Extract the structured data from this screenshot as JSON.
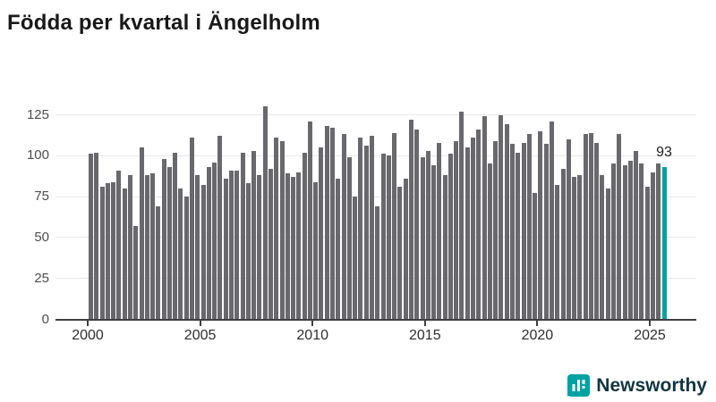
{
  "title": "Födda per kvartal i Ängelholm",
  "chart_data": {
    "type": "bar",
    "x_start": "2000-Q1",
    "frequency": "quarterly",
    "x_end": "2025-Q3",
    "values": [
      101,
      102,
      81,
      83,
      84,
      91,
      80,
      88,
      57,
      105,
      88,
      89,
      69,
      98,
      93,
      102,
      80,
      75,
      111,
      88,
      82,
      93,
      96,
      112,
      86,
      91,
      91,
      102,
      83,
      103,
      88,
      130,
      92,
      111,
      109,
      89,
      87,
      90,
      102,
      121,
      84,
      105,
      118,
      117,
      86,
      113,
      99,
      75,
      111,
      106,
      112,
      69,
      101,
      100,
      114,
      81,
      86,
      122,
      116,
      99,
      103,
      94,
      108,
      88,
      101,
      109,
      127,
      105,
      111,
      116,
      124,
      95,
      109,
      125,
      119,
      107,
      102,
      108,
      113,
      77,
      115,
      107,
      121,
      82,
      92,
      110,
      87,
      88,
      113,
      114,
      108,
      88,
      80,
      95,
      113,
      94,
      97,
      103,
      95,
      81,
      90,
      95,
      93
    ],
    "highlight_last_value": 93,
    "highlight_label": "93",
    "xtick_labels": [
      "2000",
      "2005",
      "2010",
      "2015",
      "2020",
      "2025"
    ],
    "ytick_labels": [
      "0",
      "25",
      "50",
      "75",
      "100",
      "125"
    ],
    "yticks": [
      0,
      25,
      50,
      75,
      100,
      125
    ],
    "ylim": [
      0,
      131
    ],
    "grid": true,
    "legend": "none",
    "bar_color": "#69686d",
    "highlight_color": "#00a2a2"
  },
  "branding": {
    "logo_text": "Newsworthy",
    "logo_icon": "bar-chart-bubble-icon",
    "icon_color": "#00a2a2",
    "text_color": "#113642"
  }
}
